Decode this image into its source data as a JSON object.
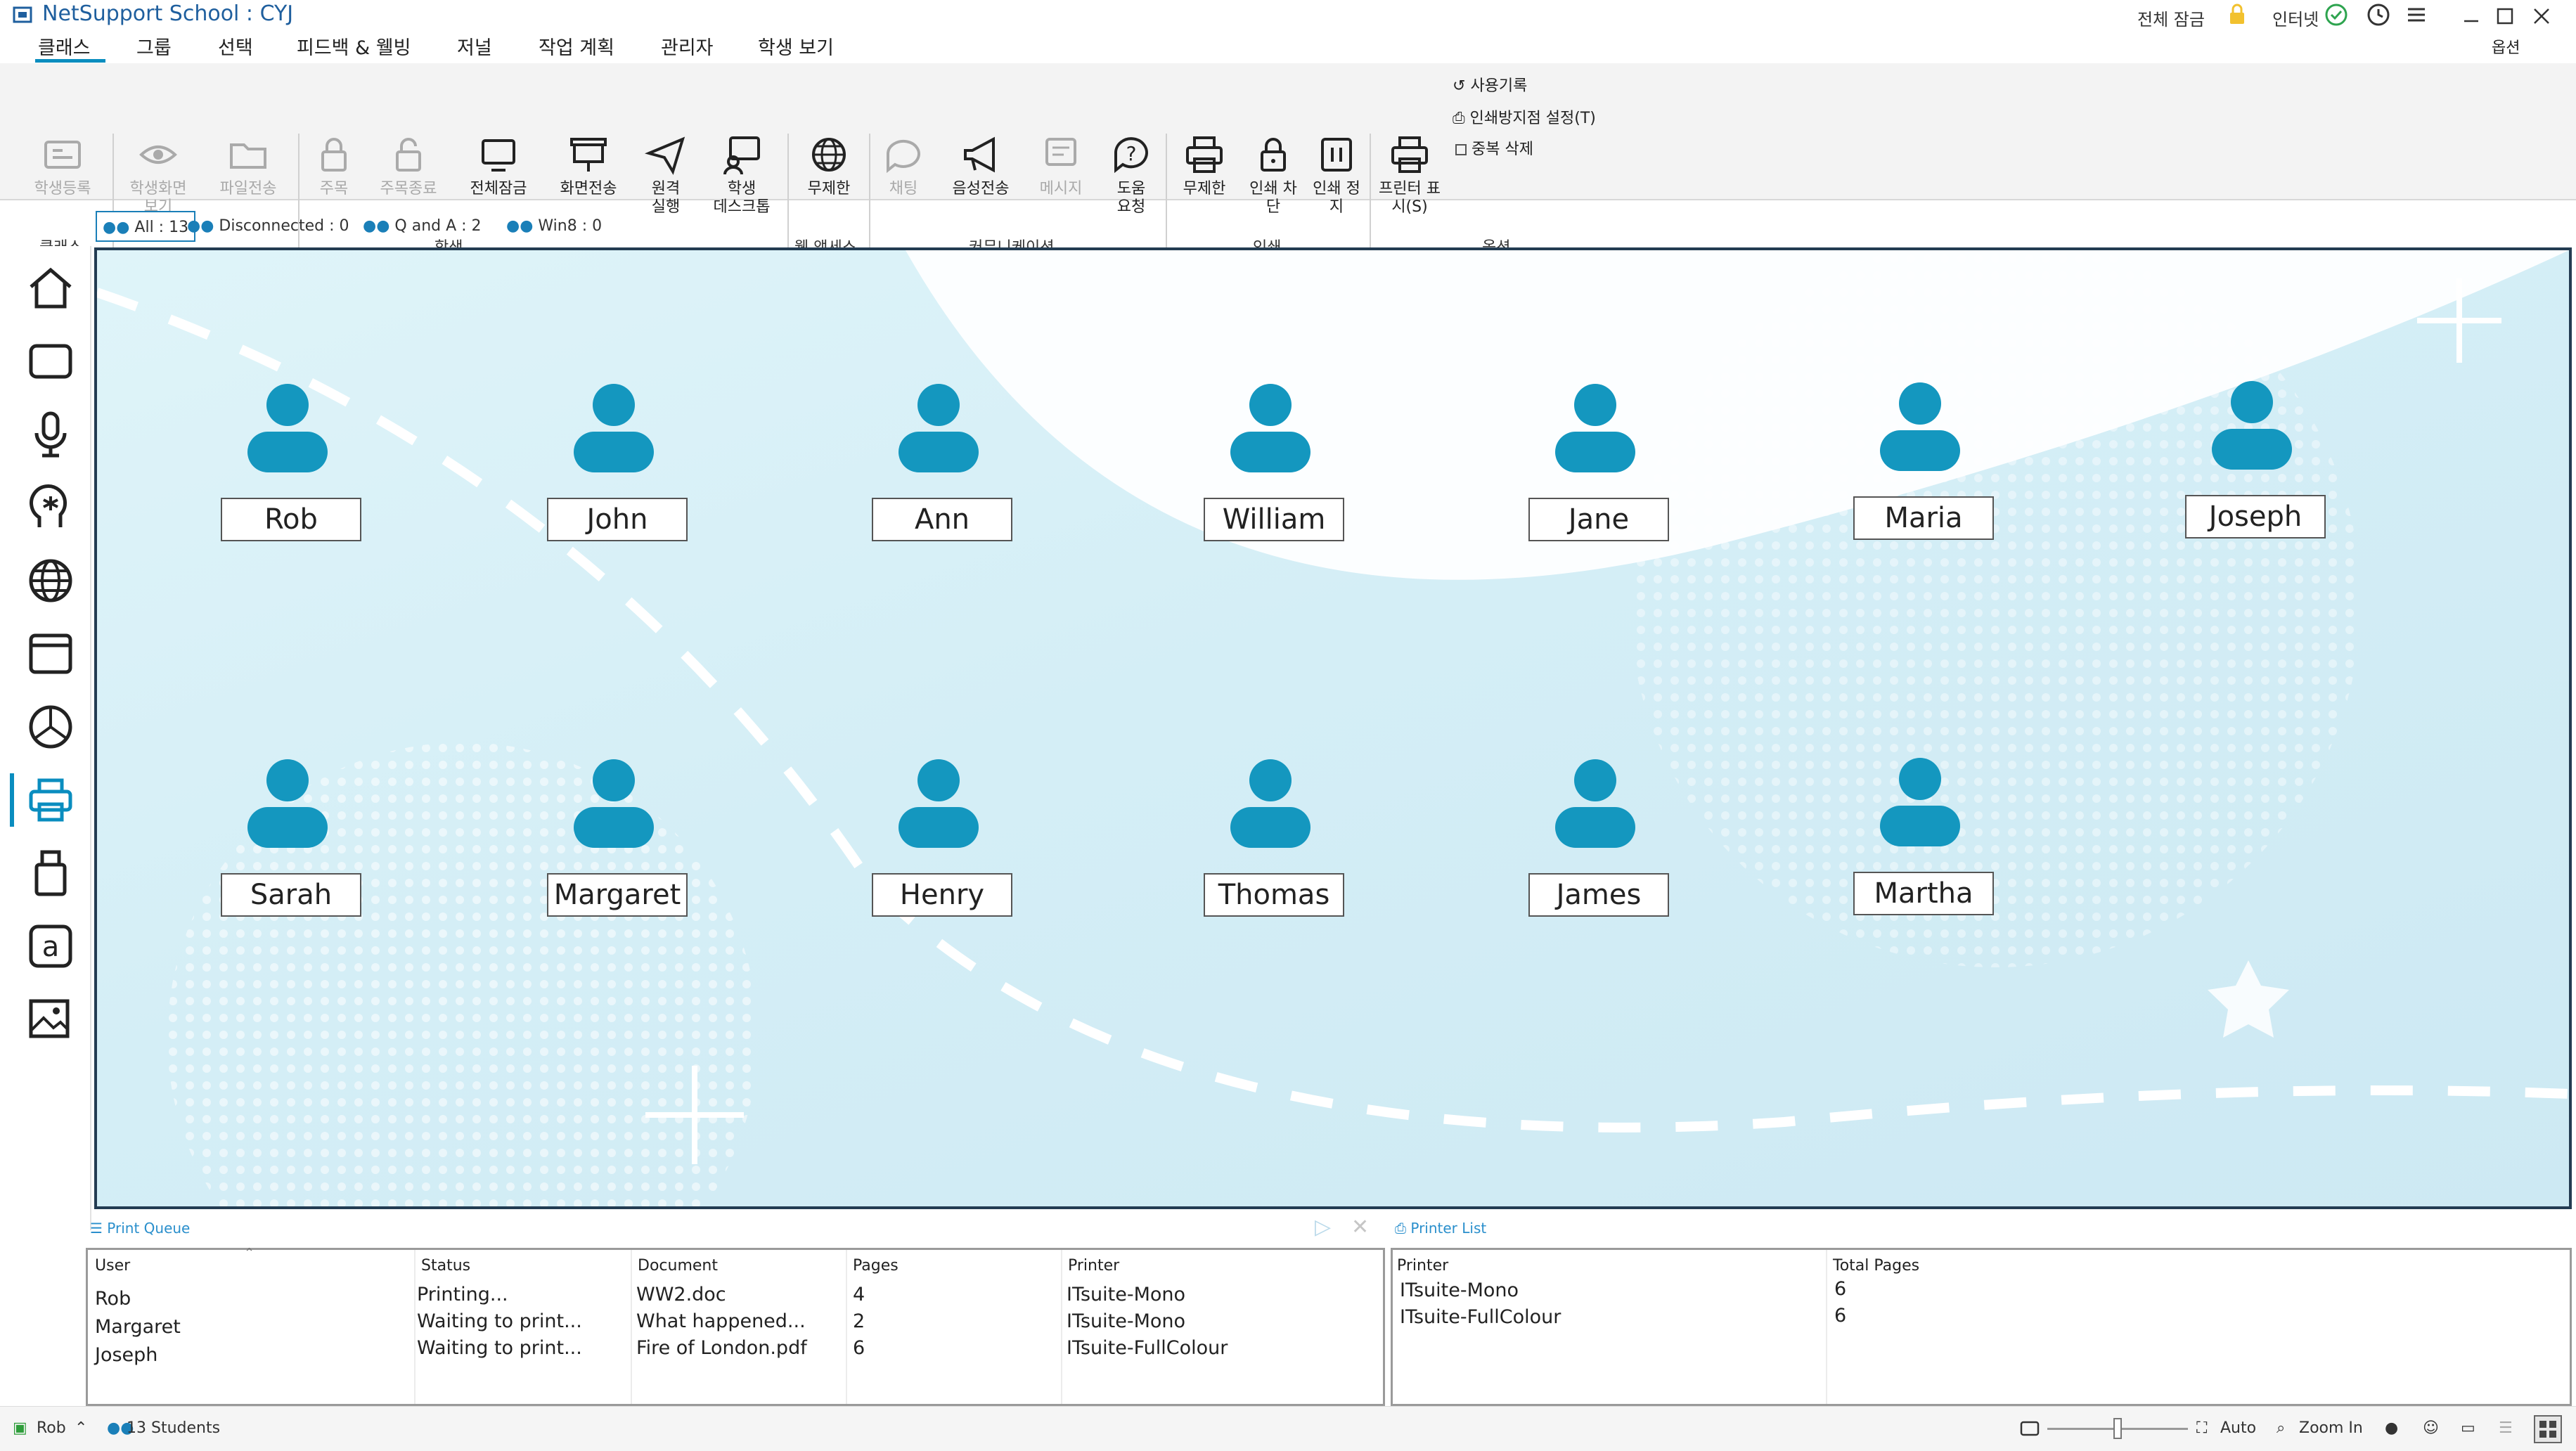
{
  "window": {
    "title": "NetSupport School : CYJ",
    "lock_all_label": "전체 잠금",
    "internet_label": "인터넷",
    "options_label": "옵션"
  },
  "menu": {
    "tabs": [
      "클래스",
      "그룹",
      "선택",
      "피드백 & 웰빙",
      "저널",
      "작업 계획",
      "관리자",
      "학생 보기"
    ]
  },
  "ribbon": {
    "buttons": {
      "register": "학생등록",
      "view": "학생화면\n보기",
      "file": "파일전송",
      "attention": "주목",
      "attention_end": "주목종료",
      "lock_all": "전체잠금",
      "show": "화면전송",
      "remote_run": "원격\n실행",
      "student_desktop": "학생\n데스크톱",
      "unrestricted": "무제한",
      "chat": "채팅",
      "audio": "음성전송",
      "message": "메시지",
      "help": "도움\n요청",
      "print_unrestricted": "무제한",
      "print_block": "인쇄 차\n단",
      "print_pause": "인쇄 정\n지",
      "printer_show": "프린터 표\n시(S)"
    },
    "small": {
      "history": "사용기록",
      "prevention": "인쇄방지점 설정(T)",
      "duplicate": "중복 삭제"
    },
    "groups": {
      "class": "클래스",
      "student": "학생",
      "web": "웹 액세스",
      "comm": "커뮤니케이션",
      "print": "인쇄",
      "options": "옵션"
    }
  },
  "filters": [
    {
      "label": "All : 13"
    },
    {
      "label": "Disconnected : 0"
    },
    {
      "label": "Q and A : 2"
    },
    {
      "label": "Win8 : 0"
    }
  ],
  "students_row1": [
    "Rob",
    "John",
    "Ann",
    "William",
    "Jane",
    "Maria",
    "Joseph"
  ],
  "students_row2": [
    "Sarah",
    "Margaret",
    "Henry",
    "Thomas",
    "James",
    "Martha"
  ],
  "print_queue": {
    "title": "Print Queue",
    "columns": [
      "User",
      "Status",
      "Document",
      "Pages",
      "Printer"
    ],
    "rows": [
      [
        "Rob",
        "Printing...",
        "WW2.doc",
        "4",
        "ITsuite-Mono"
      ],
      [
        "Margaret",
        "Waiting to print...",
        "What happened...",
        "2",
        "ITsuite-Mono"
      ],
      [
        "Joseph",
        "Waiting to print...",
        "Fire of London.pdf",
        "6",
        "ITsuite-FullColour"
      ]
    ]
  },
  "printer_list": {
    "title": "Printer List",
    "columns": [
      "Printer",
      "Total Pages"
    ],
    "rows": [
      [
        "ITsuite-Mono",
        "6"
      ],
      [
        "ITsuite-FullColour",
        "6"
      ]
    ]
  },
  "statusbar": {
    "user": "Rob",
    "students": "13 Students",
    "auto": "Auto",
    "zoom": "Zoom In"
  },
  "colors": {
    "accent": "#0a8dbf",
    "avatar": "#1497bf"
  }
}
